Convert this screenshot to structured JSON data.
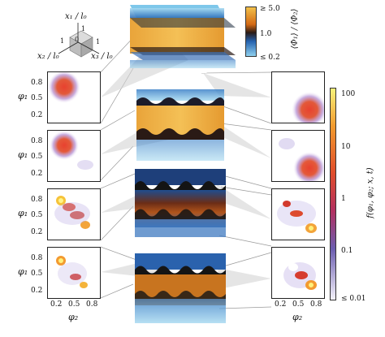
{
  "axes_triad": {
    "x1_label": "x₁ / l₀",
    "x2_label": "x₂ / l₀",
    "x3_label": "x₃ / l₀",
    "tick_one": "1",
    "tick_zero": "0"
  },
  "top_colorbar": {
    "label": "⟨Φ₁⟩ / ⟨Φ₂⟩",
    "ticks": [
      "≥ 5.0",
      "1.0",
      "≤ 0.2"
    ],
    "colors": [
      "#f2c04a",
      "#d46a14",
      "#2a1a15",
      "#2563b0",
      "#8fd0ee"
    ]
  },
  "right_colorbar": {
    "label": "f(φ₁, φ₂; x, t)",
    "ticks": [
      "100",
      "10",
      "1",
      "0.1",
      "≤ 0.01"
    ],
    "colors": [
      "#f7f27a",
      "#f29a2e",
      "#e04d2b",
      "#b23060",
      "#6b5db0",
      "#f4f2fa"
    ]
  },
  "left_panels": {
    "ylabel": "φ₁",
    "xlabel": "φ₂",
    "y_ticks": [
      "0.8",
      "0.5",
      "0.2"
    ],
    "x_ticks": [
      "0.2",
      "0.5",
      "0.8"
    ]
  },
  "right_panels": {
    "xlabel": "φ₂",
    "x_ticks": [
      "0.2",
      "0.5",
      "0.8"
    ]
  }
}
